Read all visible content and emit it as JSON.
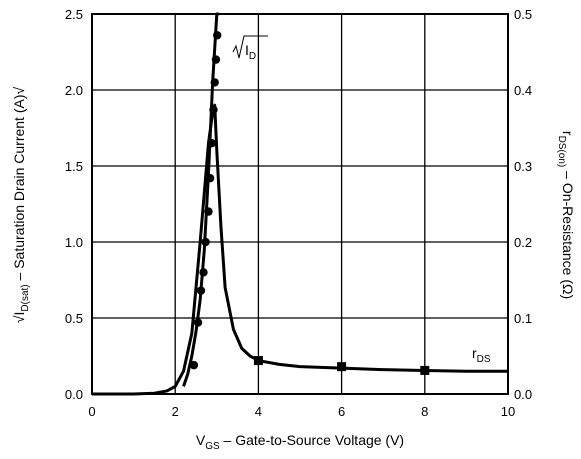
{
  "chart_data": {
    "type": "line",
    "x_axis": {
      "title_main": "V",
      "title_sub": "GS",
      "title_rest": " – Gate-to-Source Voltage (V)",
      "range": [
        0,
        10
      ],
      "ticks": [
        0,
        2,
        4,
        6,
        8,
        10
      ]
    },
    "y_left": {
      "title_pre": "√",
      "title_main": "I",
      "title_sub": "D(sat)",
      "title_rest": " – Saturation Drain Current (A)√",
      "range": [
        0,
        2.5
      ],
      "ticks": [
        "0.0",
        "0.5",
        "1.0",
        "1.5",
        "2.0",
        "2.5"
      ]
    },
    "y_right": {
      "title_main": "r",
      "title_sub": "DS(on)",
      "title_rest": " – On-Resistance (Ω)",
      "range": [
        0,
        0.5
      ],
      "ticks": [
        "0.0",
        "0.1",
        "0.2",
        "0.3",
        "0.4",
        "0.5"
      ]
    },
    "grid": true,
    "series": [
      {
        "name": "√ID",
        "axis": "left",
        "line": {
          "x": [
            2.2,
            2.3,
            2.4,
            2.5,
            2.6,
            2.7,
            2.8,
            2.9,
            3.0,
            3.05
          ],
          "y": [
            0.05,
            0.13,
            0.25,
            0.41,
            0.62,
            0.95,
            1.45,
            2.05,
            2.55,
            2.7
          ]
        },
        "markers": {
          "shape": "circle",
          "x": [
            2.45,
            2.55,
            2.62,
            2.68,
            2.73,
            2.8,
            2.84,
            2.88,
            2.92,
            2.95,
            2.98,
            3.01
          ],
          "y": [
            0.19,
            0.47,
            0.68,
            0.8,
            1.0,
            1.2,
            1.42,
            1.65,
            1.87,
            2.05,
            2.2,
            2.36
          ]
        },
        "label": {
          "pre": "√",
          "main": "I",
          "sub": "D"
        }
      },
      {
        "name": "rDS",
        "axis": "right",
        "line": {
          "x": [
            0,
            0.5,
            1.0,
            1.5,
            1.8,
            2.0,
            2.2,
            2.4,
            2.6,
            2.8,
            2.9,
            2.95,
            3.0,
            3.1,
            3.2,
            3.4,
            3.6,
            3.8,
            4.0,
            4.5,
            5.0,
            6.0,
            7.0,
            8.0,
            9.0,
            10.0
          ],
          "y": [
            0.0,
            0.0,
            0.0,
            0.001,
            0.004,
            0.01,
            0.03,
            0.08,
            0.2,
            0.33,
            0.37,
            0.38,
            0.32,
            0.22,
            0.14,
            0.085,
            0.06,
            0.05,
            0.044,
            0.039,
            0.036,
            0.034,
            0.032,
            0.031,
            0.03,
            0.03
          ]
        },
        "markers": {
          "shape": "square",
          "x": [
            4,
            6,
            8
          ],
          "y": [
            0.044,
            0.036,
            0.031
          ]
        },
        "label": {
          "main": "r",
          "sub": "DS"
        }
      }
    ]
  }
}
